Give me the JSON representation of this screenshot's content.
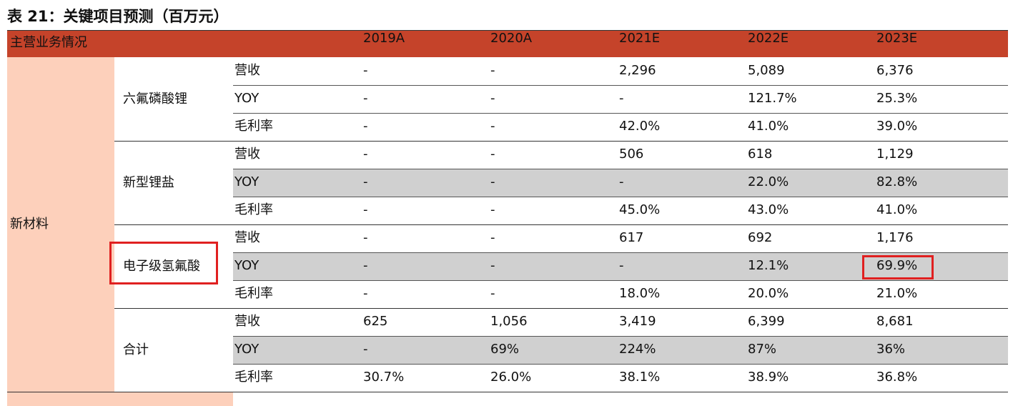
{
  "title": "表 21：关键项目预测（百万元）",
  "table": {
    "header": {
      "label": "主营业务情况",
      "years": [
        "2019A",
        "2020A",
        "2021E",
        "2022E",
        "2023E"
      ]
    },
    "section": "新材料",
    "groups": [
      {
        "label": "六氟磷酸锂",
        "rows": [
          {
            "metric": "营收",
            "values": [
              "-",
              "-",
              "2,296",
              "5,089",
              "6,376"
            ]
          },
          {
            "metric": "YOY",
            "values": [
              "-",
              "-",
              "-",
              "121.7%",
              "25.3%"
            ]
          },
          {
            "metric": "毛利率",
            "values": [
              "-",
              "-",
              "42.0%",
              "41.0%",
              "39.0%"
            ]
          }
        ]
      },
      {
        "label": "新型锂盐",
        "rows": [
          {
            "metric": "营收",
            "values": [
              "-",
              "-",
              "506",
              "618",
              "1,129"
            ]
          },
          {
            "metric": "YOY",
            "values": [
              "-",
              "-",
              "-",
              "22.0%",
              "82.8%"
            ]
          },
          {
            "metric": "毛利率",
            "values": [
              "-",
              "-",
              "45.0%",
              "43.0%",
              "41.0%"
            ]
          }
        ]
      },
      {
        "label": "电子级氢氟酸",
        "rows": [
          {
            "metric": "营收",
            "values": [
              "-",
              "-",
              "617",
              "692",
              "1,176"
            ]
          },
          {
            "metric": "YOY",
            "values": [
              "-",
              "-",
              "-",
              "12.1%",
              "69.9%"
            ]
          },
          {
            "metric": "毛利率",
            "values": [
              "-",
              "-",
              "18.0%",
              "20.0%",
              "21.0%"
            ]
          }
        ]
      },
      {
        "label": "合计",
        "rows": [
          {
            "metric": "营收",
            "values": [
              "625",
              "1,056",
              "3,419",
              "6,399",
              "8,681"
            ]
          },
          {
            "metric": "YOY",
            "values": [
              "-",
              "69%",
              "224%",
              "87%",
              "36%"
            ]
          },
          {
            "metric": "毛利率",
            "values": [
              "30.7%",
              "26.0%",
              "38.1%",
              "38.9%",
              "36.8%"
            ]
          }
        ]
      }
    ]
  }
}
